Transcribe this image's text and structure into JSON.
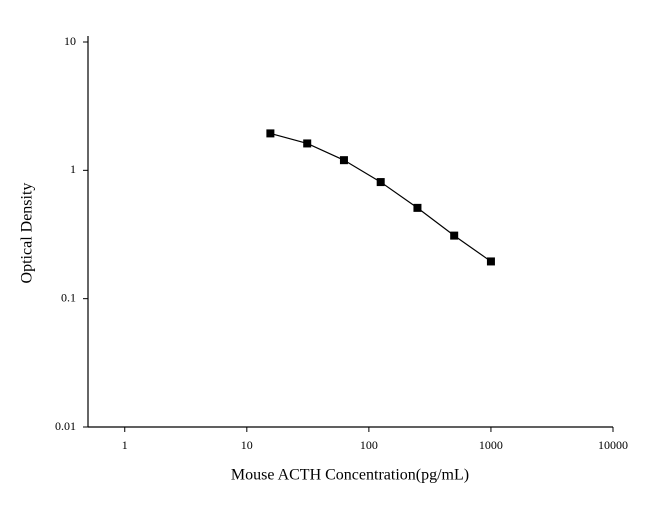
{
  "chart_data": {
    "type": "line",
    "x_label": "Mouse ACTH Concentration(pg/mL)",
    "y_label": "Optical Density",
    "x": [
      15.6,
      31.25,
      62.5,
      125,
      250,
      500,
      1000
    ],
    "series": [
      {
        "color": "#000000",
        "values": [
          1.94,
          1.62,
          1.2,
          0.81,
          0.51,
          0.31,
          0.195
        ]
      }
    ],
    "xlim": [
      0.5,
      10000
    ],
    "ylim": [
      0.01,
      10
    ],
    "xticks": [
      1,
      10,
      100,
      1000,
      10000
    ],
    "yticks": [
      0.01,
      0.1,
      1,
      10
    ],
    "xscale": "log",
    "yscale": "log",
    "grid": false
  }
}
